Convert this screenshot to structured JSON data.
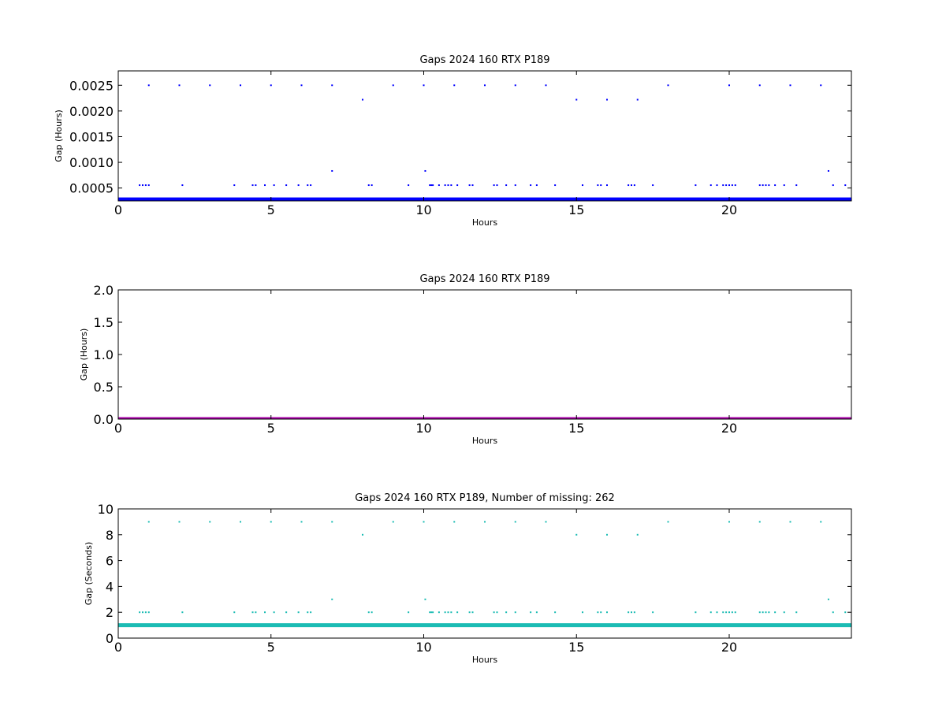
{
  "chart_data": [
    {
      "type": "scatter",
      "title": "Gaps 2024 160 RTX  P189",
      "xlabel": "Hours",
      "ylabel": "Gap (Hours)",
      "xlim": [
        0,
        24
      ],
      "ylim": [
        0.00025,
        0.00278
      ],
      "x_ticks": [
        "0",
        "5",
        "10",
        "15",
        "20"
      ],
      "y_ticks": [
        "0.0005",
        "0.0010",
        "0.0015",
        "0.0020",
        "0.0025"
      ],
      "color": "#0000ff",
      "baseline": {
        "y": 0.000278,
        "x_range": [
          0,
          24
        ]
      },
      "series": [
        {
          "y": 0.0025,
          "x": [
            1.0,
            2.0,
            3.0,
            4.0,
            5.0,
            6.0,
            7.0,
            9.0,
            10.0,
            11.0,
            12.0,
            13.0,
            14.0,
            18.0,
            20.0,
            21.0,
            22.0,
            23.0
          ]
        },
        {
          "y": 0.00222,
          "x": [
            8.0,
            15.0,
            16.0,
            17.0
          ]
        },
        {
          "y": 0.000833,
          "x": [
            7.0,
            10.05,
            23.25
          ]
        },
        {
          "y": 0.000556,
          "x": [
            0.7,
            0.8,
            0.9,
            1.0,
            2.1,
            3.8,
            4.4,
            4.5,
            4.8,
            5.1,
            5.5,
            5.9,
            6.2,
            6.3,
            8.2,
            8.3,
            9.5,
            10.2,
            10.25,
            10.3,
            10.5,
            10.7,
            10.8,
            10.9,
            11.1,
            11.5,
            11.6,
            12.3,
            12.4,
            12.7,
            13.0,
            13.5,
            13.7,
            14.3,
            15.2,
            15.7,
            15.8,
            16.0,
            16.7,
            16.8,
            16.9,
            17.5,
            18.9,
            19.4,
            19.6,
            19.8,
            19.9,
            20.0,
            20.1,
            20.2,
            21.0,
            21.1,
            21.2,
            21.3,
            21.5,
            21.8,
            22.2,
            23.4,
            23.8
          ]
        }
      ]
    },
    {
      "type": "scatter",
      "title": "Gaps 2024 160 RTX  P189",
      "xlabel": "Hours",
      "ylabel": "Gap (Hours)",
      "xlim": [
        0,
        24
      ],
      "ylim": [
        0,
        2.0
      ],
      "x_ticks": [
        "0",
        "5",
        "10",
        "15",
        "20"
      ],
      "y_ticks": [
        "0.0",
        "0.5",
        "1.0",
        "1.5",
        "2.0"
      ],
      "color": "#aa00aa",
      "baseline": {
        "y": 0.0,
        "x_range": [
          0,
          24
        ]
      },
      "series": []
    },
    {
      "type": "scatter",
      "title": "Gaps 2024 160 RTX  P189, Number of missing: 262",
      "xlabel": "Hours",
      "ylabel": "Gap (Seconds)",
      "xlim": [
        0,
        24
      ],
      "ylim": [
        0,
        10
      ],
      "x_ticks": [
        "0",
        "5",
        "10",
        "15",
        "20"
      ],
      "y_ticks": [
        "0",
        "2",
        "4",
        "6",
        "8",
        "10"
      ],
      "color": "#1bbcb4",
      "baseline": {
        "y": 1.0,
        "x_range": [
          0,
          24
        ]
      },
      "series": [
        {
          "y": 9,
          "x": [
            1.0,
            2.0,
            3.0,
            4.0,
            5.0,
            6.0,
            7.0,
            9.0,
            10.0,
            11.0,
            12.0,
            13.0,
            14.0,
            18.0,
            20.0,
            21.0,
            22.0,
            23.0
          ]
        },
        {
          "y": 8,
          "x": [
            8.0,
            15.0,
            16.0,
            17.0
          ]
        },
        {
          "y": 3,
          "x": [
            7.0,
            10.05,
            23.25
          ]
        },
        {
          "y": 2,
          "x": [
            0.7,
            0.8,
            0.9,
            1.0,
            2.1,
            3.8,
            4.4,
            4.5,
            4.8,
            5.1,
            5.5,
            5.9,
            6.2,
            6.3,
            8.2,
            8.3,
            9.5,
            10.2,
            10.25,
            10.3,
            10.5,
            10.7,
            10.8,
            10.9,
            11.1,
            11.5,
            11.6,
            12.3,
            12.4,
            12.7,
            13.0,
            13.5,
            13.7,
            14.3,
            15.2,
            15.7,
            15.8,
            16.0,
            16.7,
            16.8,
            16.9,
            17.5,
            18.9,
            19.4,
            19.6,
            19.8,
            19.9,
            20.0,
            20.1,
            20.2,
            21.0,
            21.1,
            21.2,
            21.3,
            21.5,
            21.8,
            22.2,
            23.4,
            23.8
          ]
        }
      ]
    }
  ]
}
